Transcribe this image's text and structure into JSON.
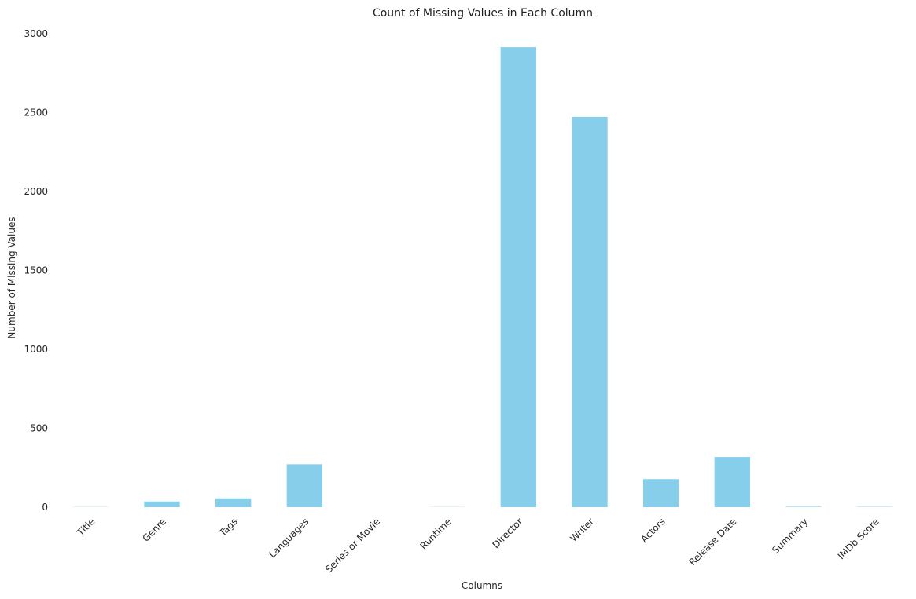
{
  "chart_data": {
    "type": "bar",
    "title": "Count of Missing Values in Each Column",
    "xlabel": "Columns",
    "ylabel": "Number of Missing Values",
    "ylim": [
      0,
      3000
    ],
    "yticks": [
      0,
      500,
      1000,
      1500,
      2000,
      2500,
      3000
    ],
    "grid": false,
    "legend": false,
    "categories": [
      "Title",
      "Genre",
      "Tags",
      "Languages",
      "Series or Movie",
      "Runtime",
      "Director",
      "Writer",
      "Actors",
      "Release Date",
      "Summary",
      "IMDb Score"
    ],
    "values": [
      1,
      36,
      56,
      272,
      0,
      1,
      2915,
      2473,
      178,
      318,
      3,
      2
    ],
    "bar_color": "#87CEEB"
  }
}
